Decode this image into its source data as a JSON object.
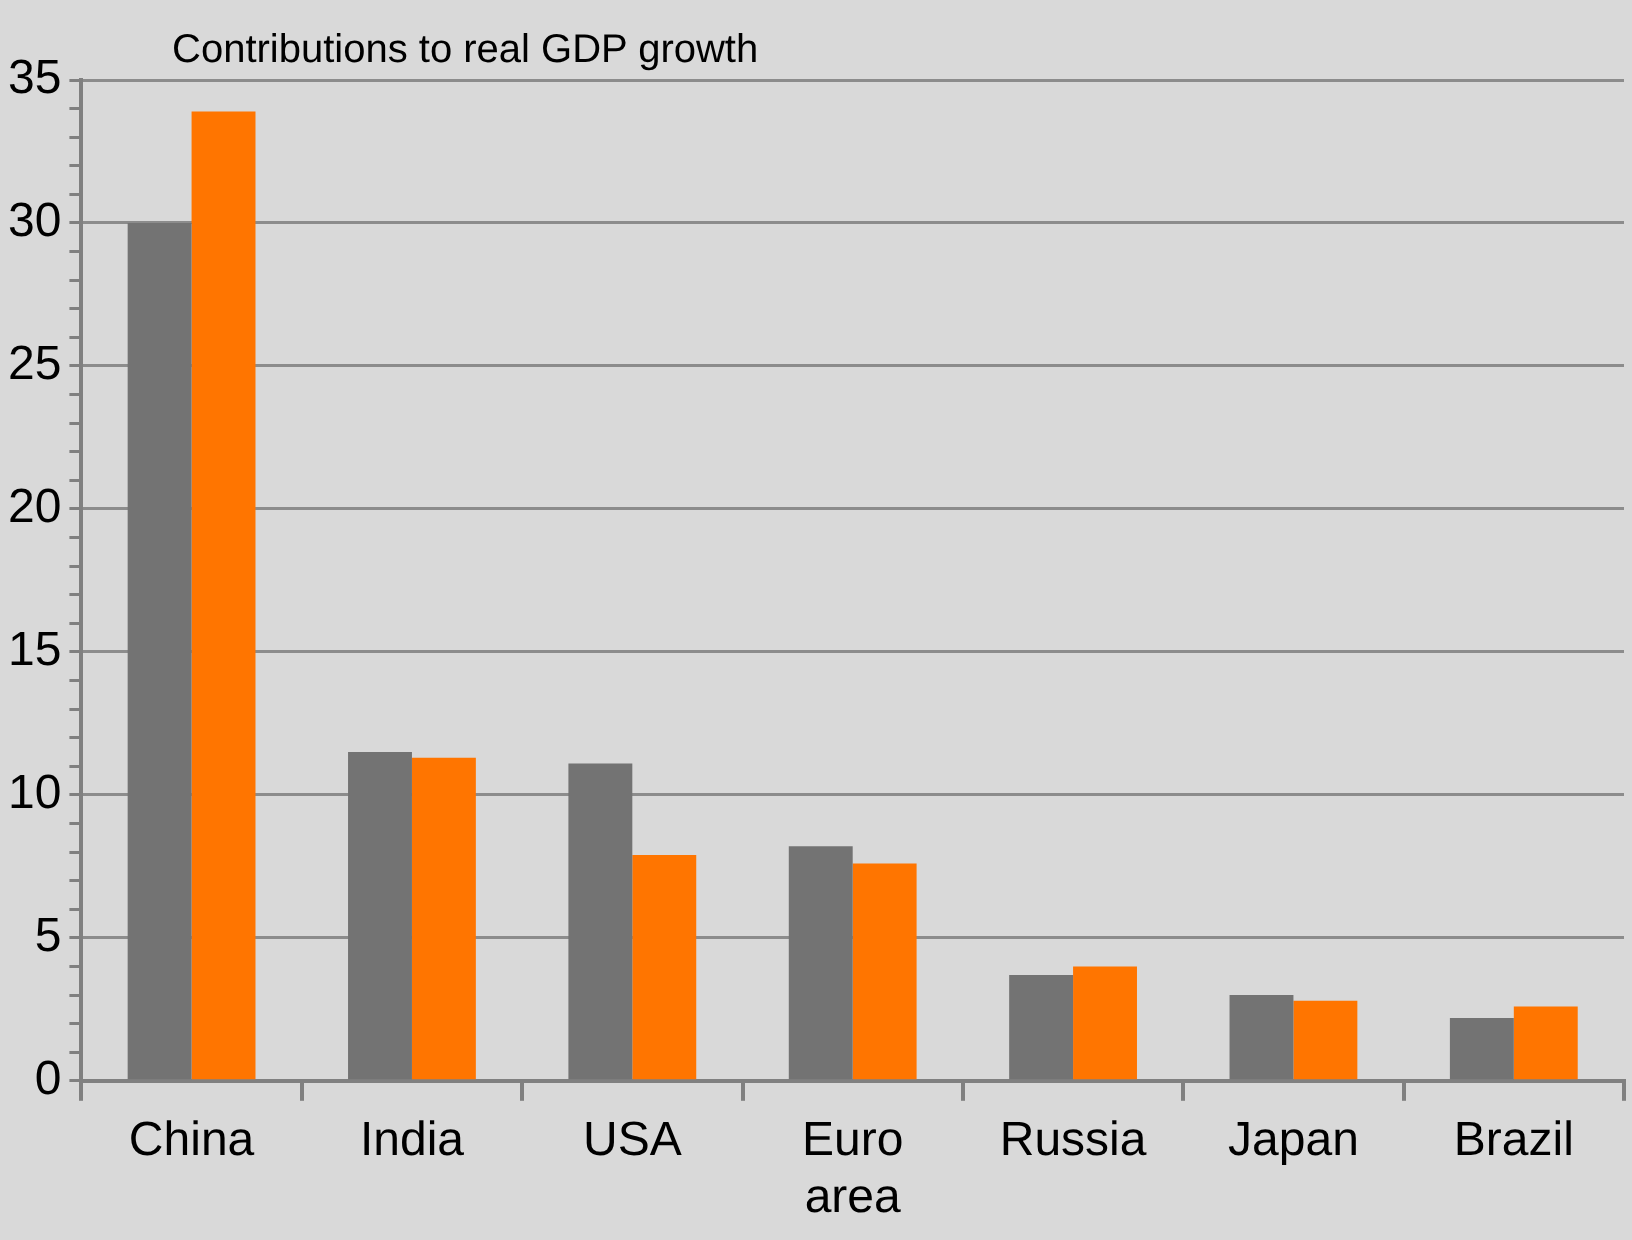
{
  "chart_data": {
    "type": "bar",
    "title": "Contributions to real GDP growth",
    "categories": [
      "China",
      "India",
      "USA",
      "Euro area",
      "Russia",
      "Japan",
      "Brazil"
    ],
    "series": [
      {
        "color": "#737373",
        "values": [
          30,
          11.5,
          11.1,
          8.2,
          3.7,
          3.0,
          2.2
        ]
      },
      {
        "color": "#ff7500",
        "values": [
          33.9,
          11.3,
          7.9,
          7.6,
          4.0,
          2.8,
          2.6
        ]
      }
    ],
    "ylim": [
      0,
      35
    ],
    "yticks": [
      0,
      {
        "value": 1,
        "label": null
      },
      {
        "value": 2,
        "label": null
      },
      {
        "value": 3,
        "label": null
      },
      {
        "value": 4,
        "label": null
      },
      5,
      {
        "value": 6,
        "label": null
      },
      {
        "value": 7,
        "label": null
      },
      {
        "value": 8,
        "label": null
      },
      {
        "value": 9,
        "label": null
      },
      10,
      {
        "value": 11,
        "label": null
      },
      {
        "value": 12,
        "label": null
      },
      {
        "value": 13,
        "label": null
      },
      {
        "value": 14,
        "label": null
      },
      15,
      {
        "value": 16,
        "label": null
      },
      {
        "value": 17,
        "label": null
      },
      {
        "value": 18,
        "label": null
      },
      {
        "value": 19,
        "label": null
      },
      20,
      {
        "value": 21,
        "label": null
      },
      {
        "value": 22,
        "label": null
      },
      {
        "value": 23,
        "label": null
      },
      {
        "value": 24,
        "label": null
      },
      25,
      {
        "value": 26,
        "label": null
      },
      {
        "value": 27,
        "label": null
      },
      {
        "value": 28,
        "label": null
      },
      {
        "value": 29,
        "label": null
      },
      30,
      {
        "value": 31,
        "label": null
      },
      {
        "value": 32,
        "label": null
      },
      {
        "value": 33,
        "label": null
      },
      {
        "value": 34,
        "label": null
      },
      35
    ],
    "grid": "y",
    "legend": false
  }
}
